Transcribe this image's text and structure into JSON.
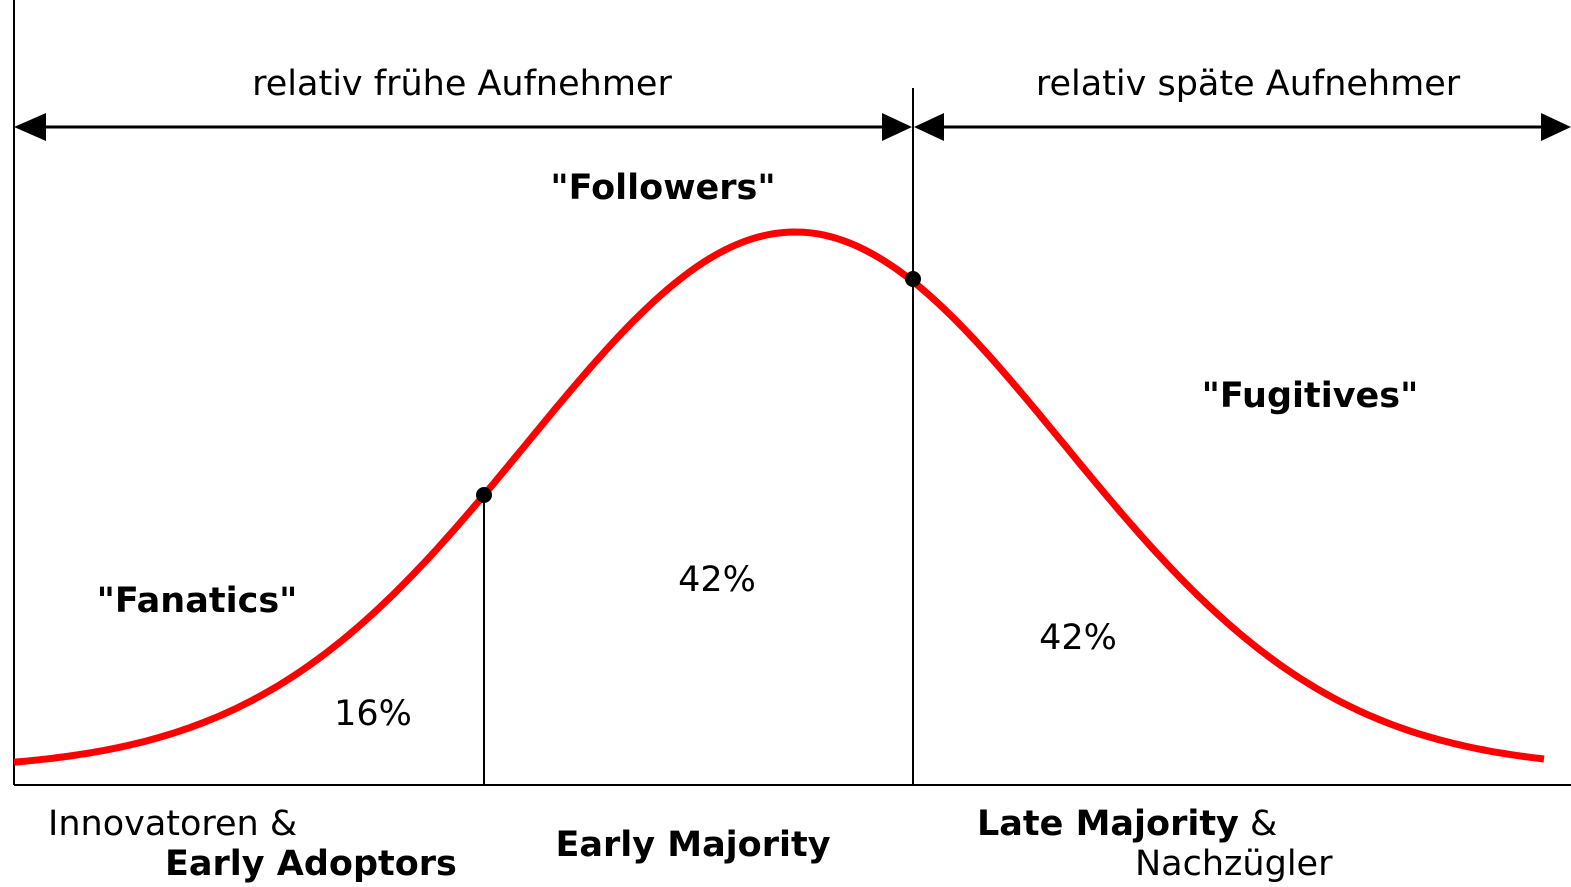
{
  "header": {
    "left": "relativ frühe Aufnehmer",
    "right": "relativ späte Aufnehmer"
  },
  "groups": [
    {
      "nickname": "\"Fanatics\"",
      "share": "16%",
      "label_top": "Innovatoren &",
      "label_bold": "Early Adoptors"
    },
    {
      "nickname": "\"Followers\"",
      "share": "42%",
      "label_bold": "Early Majority"
    },
    {
      "nickname": "\"Fugitives\"",
      "share": "42%",
      "label_bold": "Late Majority",
      "label_suffix": " &",
      "label_bottom": "Nachzügler"
    }
  ]
}
